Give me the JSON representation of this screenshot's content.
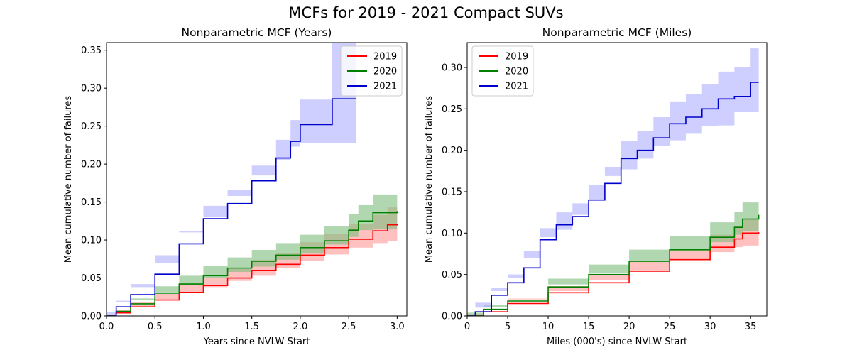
{
  "suptitle": "MCFs for 2019 - 2021 Compact SUVs",
  "chart_data": [
    {
      "type": "line",
      "title": "Nonparametric MCF (Years)",
      "xlabel": "Years since NVLW Start",
      "ylabel": "Mean cumulative number of failures",
      "xlim": [
        0.0,
        3.1
      ],
      "ylim": [
        0.0,
        0.36
      ],
      "x_ticks": [
        "0.0",
        "0.5",
        "1.0",
        "1.5",
        "2.0",
        "2.5",
        "3.0"
      ],
      "y_ticks": [
        "0.00",
        "0.05",
        "0.10",
        "0.15",
        "0.20",
        "0.25",
        "0.30",
        "0.35"
      ],
      "legend_position": "upper right",
      "grid": false,
      "series": [
        {
          "name": "2019",
          "color": "#ff0000",
          "band_color": "#ff9a9a",
          "step": true,
          "points": [
            [
              0.0,
              0.0
            ],
            [
              0.1,
              0.004
            ],
            [
              0.25,
              0.012
            ],
            [
              0.5,
              0.021
            ],
            [
              0.75,
              0.031
            ],
            [
              1.0,
              0.04
            ],
            [
              1.25,
              0.05
            ],
            [
              1.5,
              0.06
            ],
            [
              1.75,
              0.068
            ],
            [
              2.0,
              0.08
            ],
            [
              2.25,
              0.09
            ],
            [
              2.5,
              0.101
            ],
            [
              2.75,
              0.112
            ],
            [
              2.9,
              0.12
            ],
            [
              3.0,
              0.121
            ]
          ],
          "lower": [
            [
              0.0,
              0.0
            ],
            [
              0.1,
              0.001
            ],
            [
              0.25,
              0.006
            ],
            [
              0.5,
              0.013
            ],
            [
              0.75,
              0.022
            ],
            [
              1.0,
              0.03
            ],
            [
              1.25,
              0.038
            ],
            [
              1.5,
              0.046
            ],
            [
              1.75,
              0.053
            ],
            [
              2.0,
              0.063
            ],
            [
              2.25,
              0.072
            ],
            [
              2.5,
              0.081
            ],
            [
              2.75,
              0.09
            ],
            [
              2.9,
              0.096
            ],
            [
              3.0,
              0.099
            ]
          ],
          "upper": [
            [
              0.0,
              0.0
            ],
            [
              0.1,
              0.008
            ],
            [
              0.25,
              0.018
            ],
            [
              0.5,
              0.029
            ],
            [
              0.75,
              0.041
            ],
            [
              1.0,
              0.051
            ],
            [
              1.25,
              0.062
            ],
            [
              1.5,
              0.074
            ],
            [
              1.75,
              0.083
            ],
            [
              2.0,
              0.097
            ],
            [
              2.25,
              0.108
            ],
            [
              2.5,
              0.121
            ],
            [
              2.75,
              0.133
            ],
            [
              2.9,
              0.143
            ],
            [
              3.0,
              0.144
            ]
          ]
        },
        {
          "name": "2020",
          "color": "#008000",
          "band_color": "#7fbf7f",
          "step": true,
          "points": [
            [
              0.0,
              0.0
            ],
            [
              0.1,
              0.006
            ],
            [
              0.25,
              0.016
            ],
            [
              0.5,
              0.03
            ],
            [
              0.75,
              0.042
            ],
            [
              1.0,
              0.053
            ],
            [
              1.25,
              0.063
            ],
            [
              1.5,
              0.072
            ],
            [
              1.75,
              0.08
            ],
            [
              2.0,
              0.09
            ],
            [
              2.25,
              0.099
            ],
            [
              2.5,
              0.113
            ],
            [
              2.6,
              0.125
            ],
            [
              2.75,
              0.136
            ],
            [
              3.0,
              0.138
            ]
          ],
          "lower": [
            [
              0.0,
              0.0
            ],
            [
              0.1,
              0.002
            ],
            [
              0.25,
              0.01
            ],
            [
              0.5,
              0.021
            ],
            [
              0.75,
              0.031
            ],
            [
              1.0,
              0.041
            ],
            [
              1.25,
              0.05
            ],
            [
              1.5,
              0.058
            ],
            [
              1.75,
              0.065
            ],
            [
              2.0,
              0.074
            ],
            [
              2.25,
              0.082
            ],
            [
              2.5,
              0.094
            ],
            [
              2.6,
              0.104
            ],
            [
              2.75,
              0.113
            ],
            [
              3.0,
              0.114
            ]
          ],
          "upper": [
            [
              0.0,
              0.0
            ],
            [
              0.1,
              0.01
            ],
            [
              0.25,
              0.023
            ],
            [
              0.5,
              0.039
            ],
            [
              0.75,
              0.053
            ],
            [
              1.0,
              0.066
            ],
            [
              1.25,
              0.077
            ],
            [
              1.5,
              0.087
            ],
            [
              1.75,
              0.096
            ],
            [
              2.0,
              0.107
            ],
            [
              2.25,
              0.118
            ],
            [
              2.5,
              0.134
            ],
            [
              2.6,
              0.146
            ],
            [
              2.75,
              0.16
            ],
            [
              3.0,
              0.164
            ]
          ]
        },
        {
          "name": "2021",
          "color": "#0000cc",
          "band_color": "#b0b0ff",
          "step": true,
          "points": [
            [
              0.0,
              0.0
            ],
            [
              0.1,
              0.012
            ],
            [
              0.25,
              0.028
            ],
            [
              0.5,
              0.055
            ],
            [
              0.75,
              0.095
            ],
            [
              1.0,
              0.128
            ],
            [
              1.25,
              0.148
            ],
            [
              1.5,
              0.178
            ],
            [
              1.75,
              0.208
            ],
            [
              1.9,
              0.23
            ],
            [
              2.0,
              0.252
            ],
            [
              2.33,
              0.286
            ],
            [
              2.58,
              0.286
            ]
          ],
          "lower": [
            [
              0.0,
              0.0
            ],
            [
              0.1,
              0.005
            ],
            [
              0.25,
              0.018
            ],
            [
              0.5,
              0.042
            ],
            [
              0.75,
              0.08
            ],
            [
              1.0,
              0.112
            ],
            [
              1.25,
              0.13
            ],
            [
              1.5,
              0.158
            ],
            [
              1.75,
              0.185
            ],
            [
              1.9,
              0.205
            ],
            [
              2.0,
              0.223
            ],
            [
              2.33,
              0.228
            ],
            [
              2.58,
              0.228
            ]
          ],
          "upper": [
            [
              0.0,
              0.0
            ],
            [
              0.1,
              0.02
            ],
            [
              0.25,
              0.038
            ],
            [
              0.5,
              0.07
            ],
            [
              0.75,
              0.11
            ],
            [
              1.0,
              0.145
            ],
            [
              1.25,
              0.166
            ],
            [
              1.5,
              0.198
            ],
            [
              1.75,
              0.232
            ],
            [
              1.9,
              0.258
            ],
            [
              2.0,
              0.285
            ],
            [
              2.33,
              0.36
            ],
            [
              2.58,
              0.36
            ]
          ]
        }
      ]
    },
    {
      "type": "line",
      "title": "Nonparametric MCF (Miles)",
      "xlabel": "Miles (000's) since NVLW Start",
      "ylabel": "Mean cumulative number of failures",
      "xlim": [
        0,
        37
      ],
      "ylim": [
        0.0,
        0.33
      ],
      "x_ticks": [
        "0",
        "5",
        "10",
        "15",
        "20",
        "25",
        "30",
        "35"
      ],
      "y_ticks": [
        "0.00",
        "0.05",
        "0.10",
        "0.15",
        "0.20",
        "0.25",
        "0.30"
      ],
      "legend_position": "upper left",
      "grid": false,
      "series": [
        {
          "name": "2019",
          "color": "#ff0000",
          "band_color": "#ff9a9a",
          "step": true,
          "points": [
            [
              0,
              0.0
            ],
            [
              2,
              0.005
            ],
            [
              5,
              0.015
            ],
            [
              10,
              0.028
            ],
            [
              15,
              0.04
            ],
            [
              20,
              0.054
            ],
            [
              25,
              0.068
            ],
            [
              30,
              0.083
            ],
            [
              33,
              0.093
            ],
            [
              34,
              0.1
            ],
            [
              36,
              0.101
            ]
          ],
          "lower": [
            [
              0,
              0.0
            ],
            [
              2,
              0.002
            ],
            [
              5,
              0.009
            ],
            [
              10,
              0.02
            ],
            [
              15,
              0.03
            ],
            [
              20,
              0.043
            ],
            [
              25,
              0.055
            ],
            [
              30,
              0.068
            ],
            [
              33,
              0.077
            ],
            [
              34,
              0.083
            ],
            [
              36,
              0.085
            ]
          ],
          "upper": [
            [
              0,
              0.0
            ],
            [
              2,
              0.009
            ],
            [
              5,
              0.021
            ],
            [
              10,
              0.036
            ],
            [
              15,
              0.05
            ],
            [
              20,
              0.066
            ],
            [
              25,
              0.081
            ],
            [
              30,
              0.098
            ],
            [
              33,
              0.109
            ],
            [
              34,
              0.117
            ],
            [
              36,
              0.118
            ]
          ]
        },
        {
          "name": "2020",
          "color": "#008000",
          "band_color": "#7fbf7f",
          "step": true,
          "points": [
            [
              0,
              0.0
            ],
            [
              2,
              0.008
            ],
            [
              5,
              0.018
            ],
            [
              10,
              0.035
            ],
            [
              15,
              0.05
            ],
            [
              20,
              0.066
            ],
            [
              25,
              0.08
            ],
            [
              30,
              0.095
            ],
            [
              33,
              0.107
            ],
            [
              34,
              0.117
            ],
            [
              36,
              0.122
            ]
          ],
          "lower": [
            [
              0,
              0.0
            ],
            [
              2,
              0.004
            ],
            [
              5,
              0.011
            ],
            [
              10,
              0.025
            ],
            [
              15,
              0.038
            ],
            [
              20,
              0.052
            ],
            [
              25,
              0.065
            ],
            [
              30,
              0.078
            ],
            [
              33,
              0.089
            ],
            [
              34,
              0.098
            ],
            [
              36,
              0.102
            ]
          ],
          "upper": [
            [
              0,
              0.0
            ],
            [
              2,
              0.013
            ],
            [
              5,
              0.025
            ],
            [
              10,
              0.045
            ],
            [
              15,
              0.062
            ],
            [
              20,
              0.08
            ],
            [
              25,
              0.096
            ],
            [
              30,
              0.113
            ],
            [
              33,
              0.126
            ],
            [
              34,
              0.137
            ],
            [
              36,
              0.143
            ]
          ]
        },
        {
          "name": "2021",
          "color": "#0000cc",
          "band_color": "#b0b0ff",
          "step": true,
          "points": [
            [
              0,
              0.0
            ],
            [
              1,
              0.005
            ],
            [
              3,
              0.025
            ],
            [
              5,
              0.04
            ],
            [
              7,
              0.058
            ],
            [
              9,
              0.092
            ],
            [
              11,
              0.11
            ],
            [
              13,
              0.12
            ],
            [
              15,
              0.14
            ],
            [
              17,
              0.16
            ],
            [
              19,
              0.19
            ],
            [
              21,
              0.2
            ],
            [
              23,
              0.215
            ],
            [
              25,
              0.232
            ],
            [
              27,
              0.24
            ],
            [
              29,
              0.25
            ],
            [
              31,
              0.262
            ],
            [
              33,
              0.265
            ],
            [
              35,
              0.282
            ],
            [
              36,
              0.282
            ]
          ],
          "lower": [
            [
              0,
              0.0
            ],
            [
              1,
              0.001
            ],
            [
              3,
              0.016
            ],
            [
              5,
              0.03
            ],
            [
              7,
              0.046
            ],
            [
              9,
              0.078
            ],
            [
              11,
              0.095
            ],
            [
              13,
              0.104
            ],
            [
              15,
              0.122
            ],
            [
              17,
              0.141
            ],
            [
              19,
              0.169
            ],
            [
              21,
              0.177
            ],
            [
              23,
              0.19
            ],
            [
              25,
              0.205
            ],
            [
              27,
              0.212
            ],
            [
              29,
              0.22
            ],
            [
              31,
              0.229
            ],
            [
              33,
              0.23
            ],
            [
              35,
              0.246
            ],
            [
              36,
              0.246
            ]
          ],
          "upper": [
            [
              0,
              0.0
            ],
            [
              1,
              0.01
            ],
            [
              3,
              0.034
            ],
            [
              5,
              0.05
            ],
            [
              7,
              0.07
            ],
            [
              9,
              0.106
            ],
            [
              11,
              0.125
            ],
            [
              13,
              0.136
            ],
            [
              15,
              0.158
            ],
            [
              17,
              0.18
            ],
            [
              19,
              0.211
            ],
            [
              21,
              0.223
            ],
            [
              23,
              0.24
            ],
            [
              25,
              0.259
            ],
            [
              27,
              0.268
            ],
            [
              29,
              0.28
            ],
            [
              31,
              0.295
            ],
            [
              33,
              0.3
            ],
            [
              35,
              0.323
            ],
            [
              36,
              0.323
            ]
          ]
        }
      ]
    }
  ]
}
